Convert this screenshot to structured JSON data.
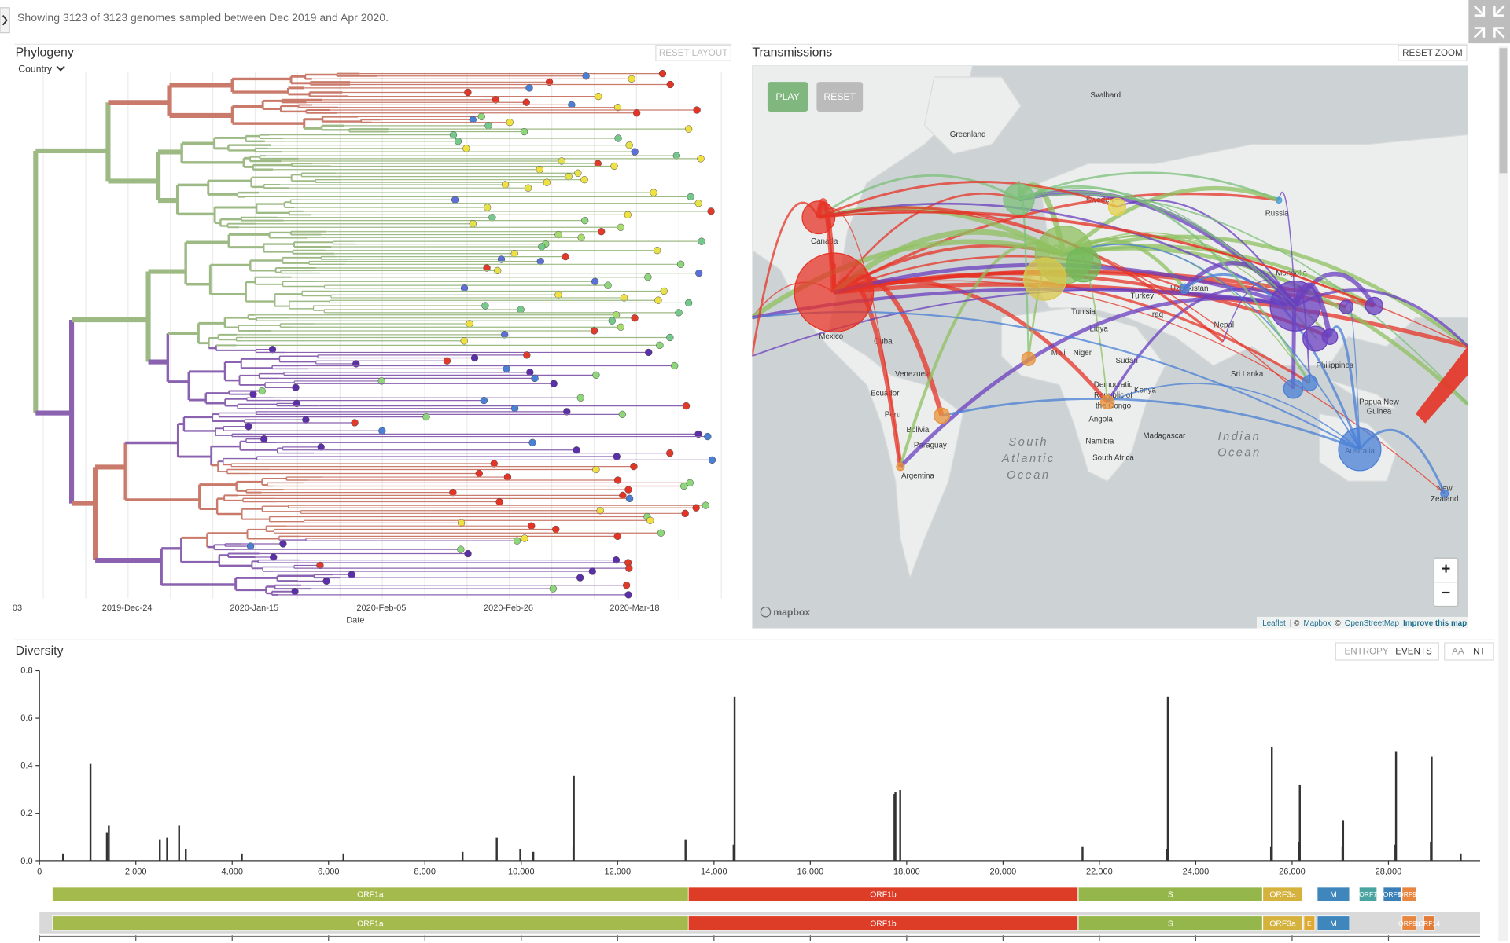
{
  "header": {
    "summary": "Showing 3123 of 3123 genomes sampled between Dec 2019 and Apr 2020."
  },
  "phylogeny": {
    "title": "Phylogeny",
    "reset_button": "RESET LAYOUT",
    "color_by": "Country",
    "date_ticks": [
      "03",
      "2019-Dec-24",
      "2020-Jan-15",
      "2020-Feb-05",
      "2020-Feb-26",
      "2020-Mar-18"
    ],
    "axis_label": "Date"
  },
  "transmissions": {
    "title": "Transmissions",
    "reset_button": "RESET ZOOM",
    "play_button": "PLAY",
    "reset_map_button": "RESET",
    "zoom_in": "+",
    "zoom_out": "−",
    "logo": "mapbox",
    "attribution": [
      "Leaflet",
      "| ©",
      "Mapbox",
      "©",
      "OpenStreetMap",
      "Improve this map"
    ],
    "labels": [
      "Svalbard",
      "Greenland",
      "Sweden",
      "Russia",
      "Canada",
      "Mexico",
      "Cuba",
      "Venezuela",
      "Ecuador",
      "Peru",
      "Bolivia",
      "Paraguay",
      "Argentina",
      "South",
      "Atlantic",
      "Ocean",
      "Mali",
      "Niger",
      "Sudan",
      "Angola",
      "Namibia",
      "South Africa",
      "Madagascar",
      "Kenya",
      "Democratic",
      "Republic of",
      "the Congo",
      "Indian",
      "Ocean",
      "Mongolia",
      "Uzbekistan",
      "Turkey",
      "Iraq",
      "Sri Lanka",
      "Philippines",
      "Papua New",
      "Guinea",
      "Australia",
      "New",
      "Zealand",
      "Tunisia",
      "Libya",
      "Nepal"
    ]
  },
  "diversity": {
    "title": "Diversity",
    "mode_buttons": [
      "ENTROPY",
      "EVENTS"
    ],
    "seq_buttons": [
      "AA",
      "NT"
    ],
    "chart_data": {
      "type": "bar",
      "xlim": [
        0,
        29903
      ],
      "ylim": [
        0,
        0.8
      ],
      "xticks": [
        {
          "value": 0,
          "label": "0"
        },
        {
          "value": 2000,
          "label": "2,000"
        },
        {
          "value": 4000,
          "label": "4,000"
        },
        {
          "value": 6000,
          "label": "6,000"
        },
        {
          "value": 8000,
          "label": "8,000"
        },
        {
          "value": 10000,
          "label": "10,000"
        },
        {
          "value": 12000,
          "label": "12,000"
        },
        {
          "value": 14000,
          "label": "14,000"
        },
        {
          "value": 16000,
          "label": "16,000"
        },
        {
          "value": 18000,
          "label": "18,000"
        },
        {
          "value": 20000,
          "label": "20,000"
        },
        {
          "value": 22000,
          "label": "22,000"
        },
        {
          "value": 24000,
          "label": "24,000"
        },
        {
          "value": 26000,
          "label": "26,000"
        },
        {
          "value": 28000,
          "label": "28,000"
        }
      ],
      "yticks": [
        {
          "value": 0,
          "label": "0.0"
        },
        0.2,
        0.4,
        0.6,
        0.8
      ],
      "color": "#333333",
      "x": [
        490,
        1059,
        1400,
        1439,
        2498,
        2650,
        2898,
        3037,
        4200,
        6310,
        8782,
        9492,
        9980,
        10250,
        11091,
        11083,
        13410,
        14408,
        14428,
        17747,
        17766,
        17866,
        21650,
        23403,
        23421,
        25563,
        25580,
        26144,
        26160,
        27046,
        27059,
        28144,
        28157,
        28881,
        28897,
        29500
      ],
      "values": [
        0.03,
        0.41,
        0.12,
        0.15,
        0.09,
        0.1,
        0.15,
        0.05,
        0.03,
        0.03,
        0.04,
        0.1,
        0.05,
        0.04,
        0.36,
        0.06,
        0.09,
        0.07,
        0.69,
        0.28,
        0.29,
        0.3,
        0.06,
        0.05,
        0.69,
        0.06,
        0.48,
        0.08,
        0.32,
        0.06,
        0.17,
        0.07,
        0.46,
        0.08,
        0.44,
        0.03
      ]
    },
    "genes": [
      {
        "name": "ORF1a",
        "start": 266,
        "end": 13468,
        "color": "#a4ba4c",
        "row": 1
      },
      {
        "name": "ORF1b",
        "start": 13468,
        "end": 21555,
        "color": "#dd3d27",
        "row": 1
      },
      {
        "name": "S",
        "start": 21563,
        "end": 25384,
        "color": "#95b64a",
        "row": 1
      },
      {
        "name": "ORF3a",
        "start": 25393,
        "end": 26220,
        "color": "#d5b23e",
        "row": 1
      },
      {
        "name": "M",
        "start": 26523,
        "end": 27191,
        "color": "#3f86bd",
        "row": 1
      },
      {
        "name": "ORF7",
        "start": 27394,
        "end": 27759,
        "color": "#4aa3a0",
        "row": 1
      },
      {
        "name": "ORF8",
        "start": 27894,
        "end": 28259,
        "color": "#3a7fb8",
        "row": 1
      },
      {
        "name": "ORF9b",
        "start": 28284,
        "end": 28577,
        "color": "#e88640",
        "row": 1
      },
      {
        "name": "ORF1a",
        "start": 266,
        "end": 13468,
        "color": "#a4ba4c",
        "row": 2
      },
      {
        "name": "ORF1b",
        "start": 13468,
        "end": 21555,
        "color": "#dd3d27",
        "row": 2
      },
      {
        "name": "S",
        "start": 21563,
        "end": 25384,
        "color": "#95b64a",
        "row": 2
      },
      {
        "name": "ORF3a",
        "start": 25393,
        "end": 26220,
        "color": "#d5b23e",
        "row": 2
      },
      {
        "name": "E",
        "start": 26245,
        "end": 26472,
        "color": "#e0a930",
        "row": 2
      },
      {
        "name": "M",
        "start": 26523,
        "end": 27191,
        "color": "#3f86bd",
        "row": 2
      },
      {
        "name": "ORF9b",
        "start": 28284,
        "end": 28577,
        "color": "#e88640",
        "row": 2
      },
      {
        "name": "ORF14",
        "start": 28734,
        "end": 28955,
        "color": "#e47a35",
        "row": 2
      }
    ]
  }
}
